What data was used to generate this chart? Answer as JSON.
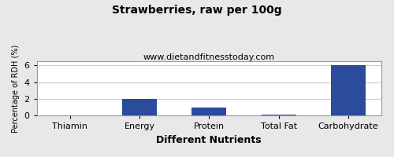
{
  "title": "Strawberries, raw per 100g",
  "subtitle": "www.dietandfitnesstoday.com",
  "xlabel": "Different Nutrients",
  "ylabel": "Percentage of RDH (%)",
  "categories": [
    "Thiamin",
    "Energy",
    "Protein",
    "Total Fat",
    "Carbohydrate"
  ],
  "values": [
    0.0,
    2.0,
    1.0,
    0.1,
    6.0
  ],
  "bar_color": "#2b4b9b",
  "ylim": [
    0,
    6.5
  ],
  "yticks": [
    0,
    2,
    4,
    6
  ],
  "background_color": "#e8e8e8",
  "plot_background": "#ffffff",
  "grid_color": "#cccccc",
  "title_fontsize": 10,
  "subtitle_fontsize": 8,
  "ylabel_fontsize": 7,
  "tick_fontsize": 8,
  "xlabel_fontsize": 9,
  "xlabel_fontweight": "bold",
  "title_fontweight": "bold",
  "border_color": "#999999"
}
